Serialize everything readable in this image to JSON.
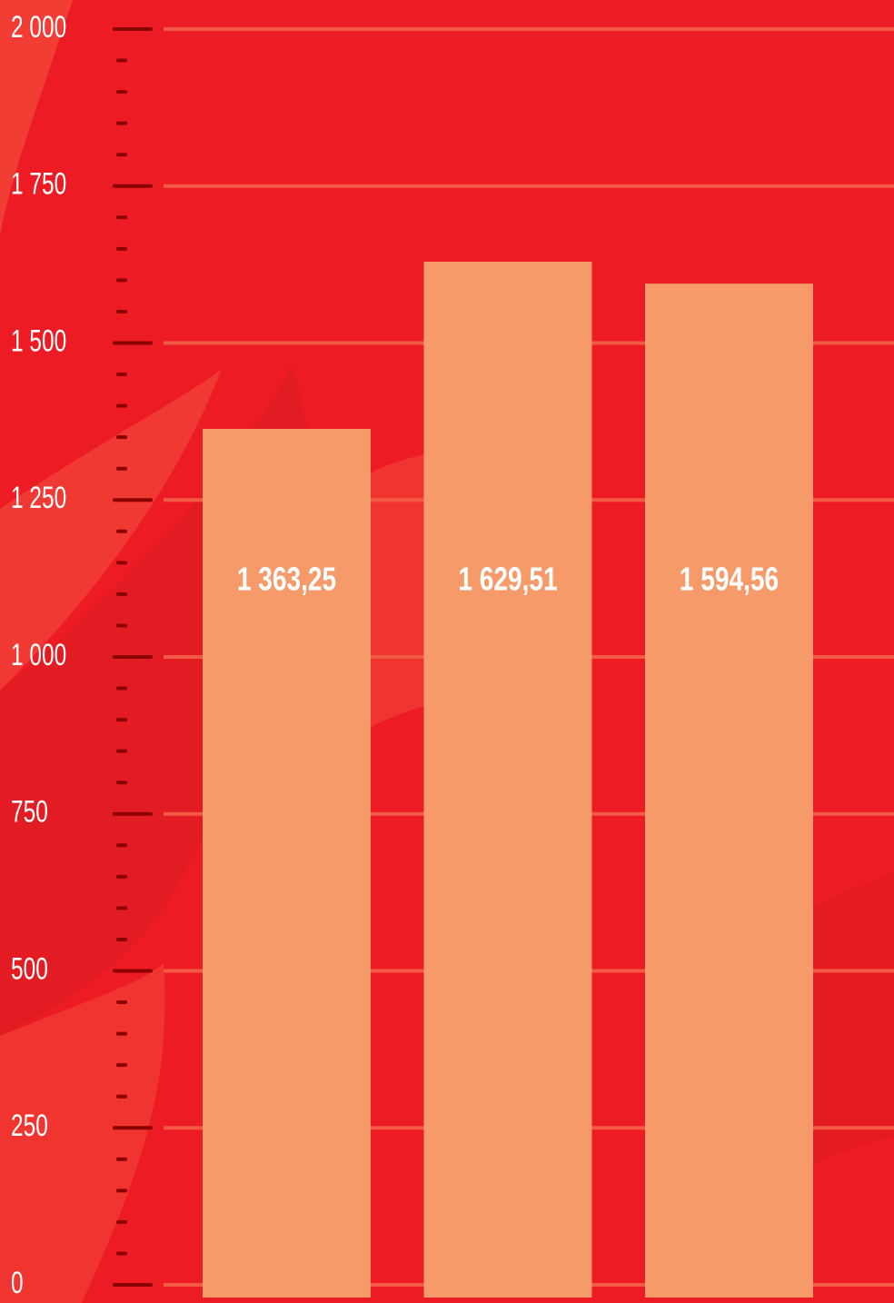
{
  "chart_data": {
    "type": "bar",
    "categories": [
      null,
      null,
      null
    ],
    "values": [
      1363.25,
      1629.51,
      1594.56
    ],
    "value_labels": [
      "1 363,25",
      "1 629,51",
      "1 594,56"
    ],
    "color": "#f69a6a",
    "ylim": [
      0,
      2000
    ],
    "yticks": [
      0,
      250,
      500,
      750,
      {
        "value": 1000,
        "label": "1 000"
      },
      {
        "value": 1250,
        "label": "1 250"
      },
      {
        "value": 1500,
        "label": "1 500"
      },
      {
        "value": 1750,
        "label": "1 750"
      },
      {
        "value": 2000,
        "label": "2 000"
      }
    ],
    "grid": true
  }
}
